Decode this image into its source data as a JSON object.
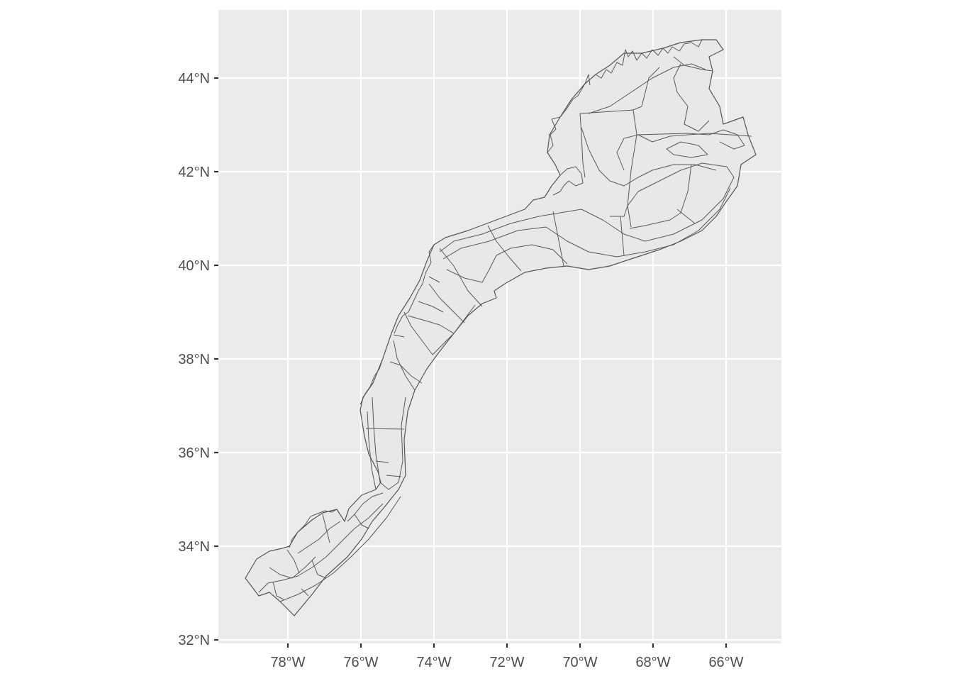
{
  "map": {
    "background_color": "#ebebeb",
    "grid_color": "#ffffff",
    "region_fill": "#e8e8e8",
    "region_stroke": "#595959",
    "x_axis": {
      "ticks": [
        {
          "label": "78°W",
          "lon": -78
        },
        {
          "label": "76°W",
          "lon": -76
        },
        {
          "label": "74°W",
          "lon": -74
        },
        {
          "label": "72°W",
          "lon": -72
        },
        {
          "label": "70°W",
          "lon": -70
        },
        {
          "label": "68°W",
          "lon": -68
        },
        {
          "label": "66°W",
          "lon": -66
        }
      ]
    },
    "y_axis": {
      "ticks": [
        {
          "label": "44°N",
          "lat": 44
        },
        {
          "label": "42°N",
          "lat": 42
        },
        {
          "label": "40°N",
          "lat": 40
        },
        {
          "label": "38°N",
          "lat": 38
        },
        {
          "label": "36°N",
          "lat": 36
        },
        {
          "label": "34°N",
          "lat": 34
        },
        {
          "label": "32°N",
          "lat": 32
        }
      ]
    }
  }
}
